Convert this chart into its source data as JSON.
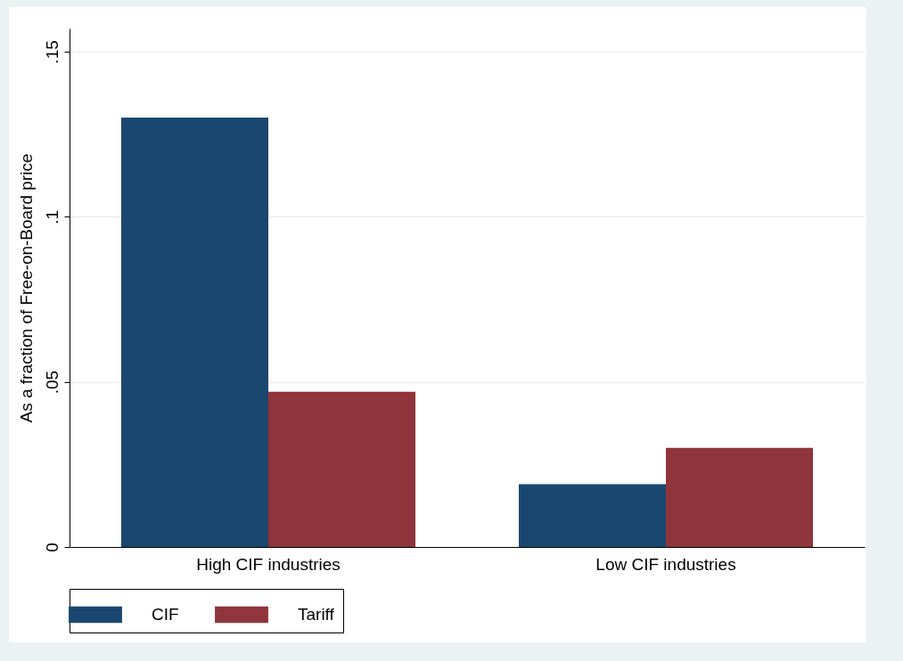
{
  "chart_data": {
    "type": "bar",
    "ylabel": "As a fraction of Free-on-Board price",
    "categories": [
      "High CIF industries",
      "Low CIF industries"
    ],
    "series": [
      {
        "name": "CIF",
        "color": "#1a476f",
        "values": [
          0.13,
          0.019
        ]
      },
      {
        "name": "Tariff",
        "color": "#90353b",
        "values": [
          0.047,
          0.03
        ]
      }
    ],
    "ylim": [
      0,
      0.157
    ],
    "yticks": [
      0,
      {
        "value": 0.05,
        "label": ".05"
      },
      {
        "value": 0.1,
        "label": ".1"
      },
      {
        "value": 0.15,
        "label": ".15"
      }
    ],
    "grid": "y",
    "legend": "bottom"
  }
}
